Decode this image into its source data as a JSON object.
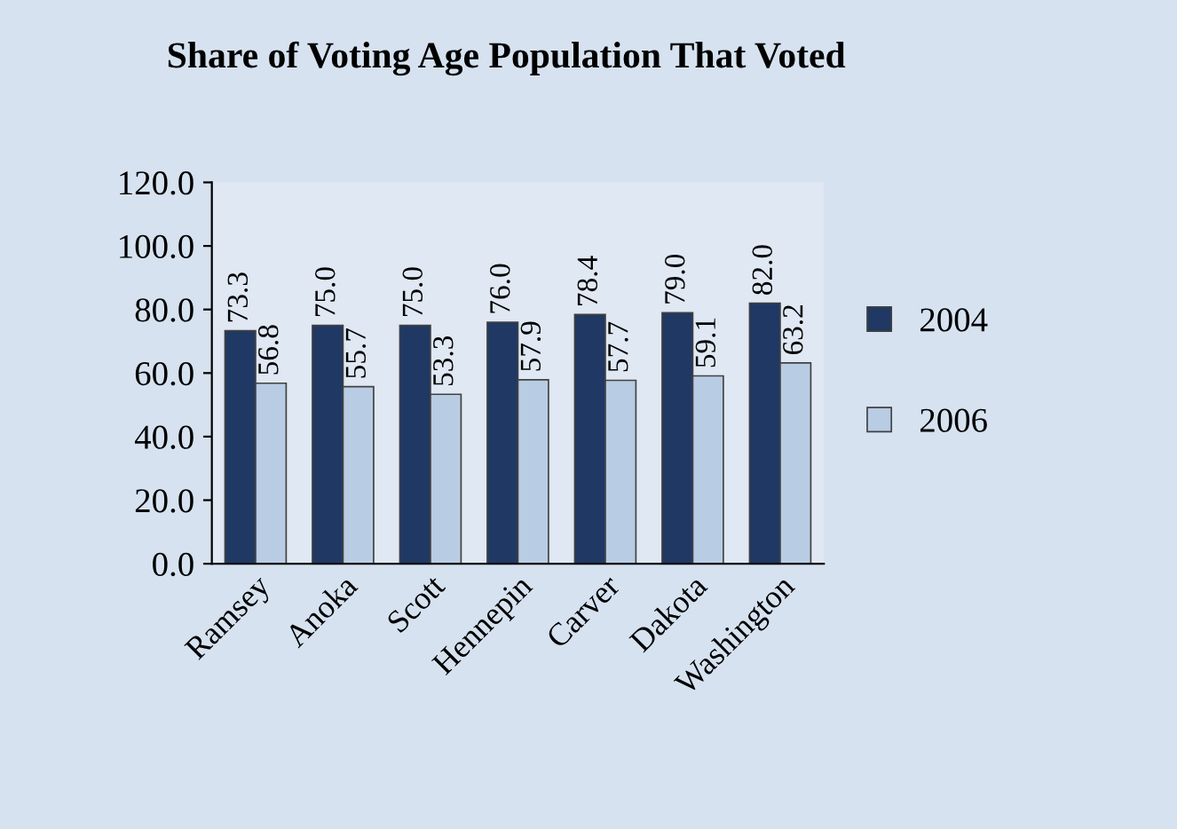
{
  "chart_data": {
    "type": "bar",
    "title": "Share of Voting Age Population That Voted",
    "categories": [
      "Ramsey",
      "Anoka",
      "Scott",
      "Hennepin",
      "Carver",
      "Dakota",
      "Washington"
    ],
    "series": [
      {
        "name": "2004",
        "color": "#1f3864",
        "values": [
          73.3,
          75.0,
          75.0,
          76.0,
          78.4,
          79.0,
          82.0
        ]
      },
      {
        "name": "2006",
        "color": "#b8cce4",
        "values": [
          56.8,
          55.7,
          53.3,
          57.9,
          57.7,
          59.1,
          63.2
        ]
      }
    ],
    "ylim": [
      0,
      120
    ],
    "yticks": [
      {
        "value": 0,
        "label": "0.0"
      },
      {
        "value": 20,
        "label": "20.0"
      },
      {
        "value": 40,
        "label": "40.0"
      },
      {
        "value": 60,
        "label": "60.0"
      },
      {
        "value": 80,
        "label": "80.0"
      },
      {
        "value": 100,
        "label": "100.0"
      },
      {
        "value": 120,
        "label": "120.0"
      }
    ],
    "value_labels": [
      [
        "73.3",
        "75.0",
        "75.0",
        "76.0",
        "78.4",
        "79.0",
        "82.0"
      ],
      [
        "56.8",
        "55.7",
        "53.3",
        "57.9",
        "57.7",
        "59.1",
        "63.2"
      ]
    ],
    "grid": false,
    "legend": "right"
  }
}
